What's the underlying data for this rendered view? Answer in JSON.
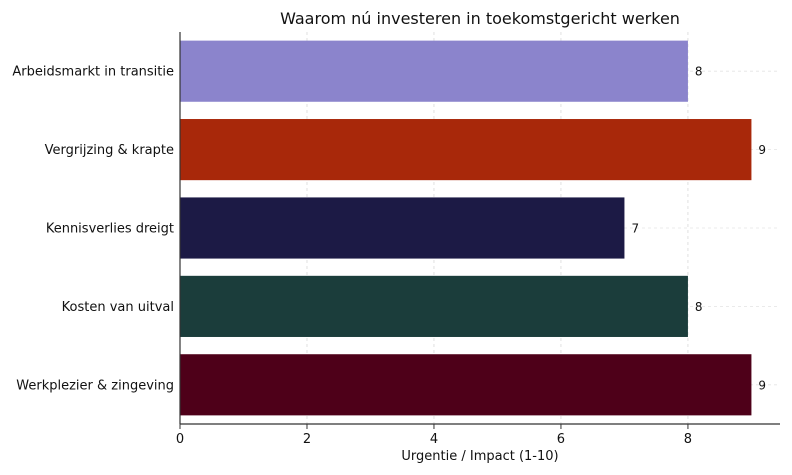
{
  "chart_data": {
    "type": "bar",
    "orientation": "horizontal",
    "title": "Waarom nú investeren in toekomstgericht werken",
    "xlabel": "Urgentie / Impact (1-10)",
    "ylabel": "",
    "xlim": [
      0,
      9.45
    ],
    "xticks": [
      0,
      2,
      4,
      6,
      8
    ],
    "grid": true,
    "categories": [
      "Arbeidsmarkt in transitie",
      "Vergrijzing & krapte",
      "Kennisverlies dreigt",
      "Kosten van uitval",
      "Werkplezier & zingeving"
    ],
    "values": [
      8,
      9,
      7,
      8,
      9
    ],
    "colors": [
      "#8b84cc",
      "#a8280a",
      "#1c1a45",
      "#1b3d3b",
      "#4e0019"
    ]
  }
}
